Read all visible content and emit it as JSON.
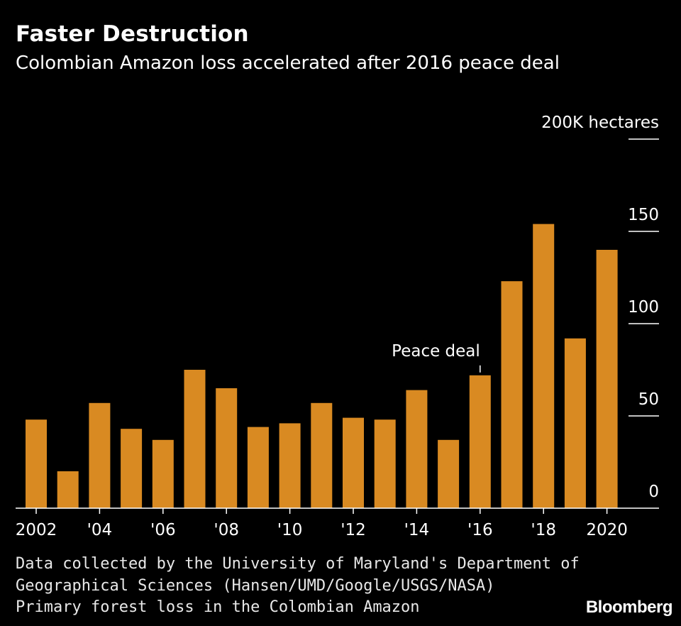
{
  "header": {
    "title": "Faster Destruction",
    "subtitle": "Colombian Amazon loss accelerated after 2016 peace deal"
  },
  "footer": {
    "source_line1": "Data collected by the University of Maryland's Department of",
    "source_line2": "Geographical Sciences (Hansen/UMD/Google/USGS/NASA)",
    "note": "Primary forest loss in the Colombian Amazon",
    "brand": "Bloomberg"
  },
  "colors": {
    "bar": "#d98a22",
    "background": "#000000",
    "text": "#ffffff"
  },
  "chart_data": {
    "type": "bar",
    "title": "Faster Destruction",
    "ylabel": "hectares",
    "ylim": [
      0,
      200
    ],
    "yticks": [
      0,
      50,
      100,
      150,
      200
    ],
    "ytick_labels": [
      "0",
      "50",
      "100",
      "150",
      "200K hectares"
    ],
    "categories": [
      "2002",
      "2003",
      "2004",
      "2005",
      "2006",
      "2007",
      "2008",
      "2009",
      "2010",
      "2011",
      "2012",
      "2013",
      "2014",
      "2015",
      "2016",
      "2017",
      "2018",
      "2019",
      "2020"
    ],
    "xtick_labels": {
      "2002": "2002",
      "2004": "'04",
      "2006": "'06",
      "2008": "'08",
      "2010": "'10",
      "2012": "'12",
      "2014": "'14",
      "2016": "'16",
      "2018": "'18",
      "2020": "2020"
    },
    "values": [
      48,
      20,
      57,
      43,
      37,
      75,
      65,
      44,
      46,
      57,
      49,
      48,
      64,
      37,
      72,
      123,
      154,
      92,
      140
    ],
    "annotations": [
      {
        "category": "2016",
        "text": "Peace deal"
      }
    ]
  }
}
